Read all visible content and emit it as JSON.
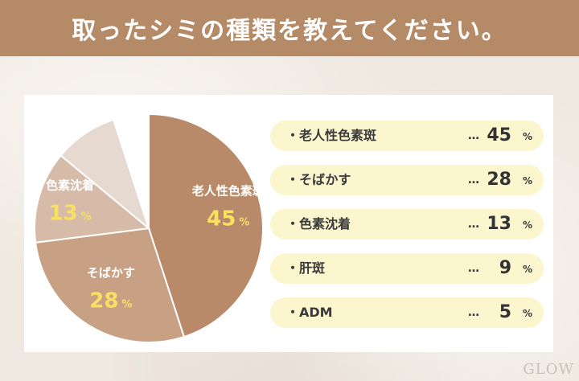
{
  "header": {
    "title": "取ったシミの種類を教えてください。"
  },
  "chart_data": {
    "type": "pie",
    "categories": [
      "老人性色素斑",
      "そばかす",
      "色素沈着",
      "肝斑",
      "ADM"
    ],
    "values": [
      45,
      28,
      13,
      9,
      5
    ],
    "unit": "%",
    "colors": [
      "#b98a69",
      "#c8a185",
      "#d5bba8",
      "#e5d9d0",
      "#ffffff"
    ]
  },
  "legend": {
    "bullet": "・",
    "dots": "…",
    "pct": "%",
    "items": [
      {
        "label": "老人性色素斑",
        "value": "45"
      },
      {
        "label": "そばかす",
        "value": "28"
      },
      {
        "label": "色素沈着",
        "value": "13"
      },
      {
        "label": "肝斑",
        "value": "9"
      },
      {
        "label": "ADM",
        "value": "5"
      }
    ]
  },
  "watermark": "GLOW"
}
